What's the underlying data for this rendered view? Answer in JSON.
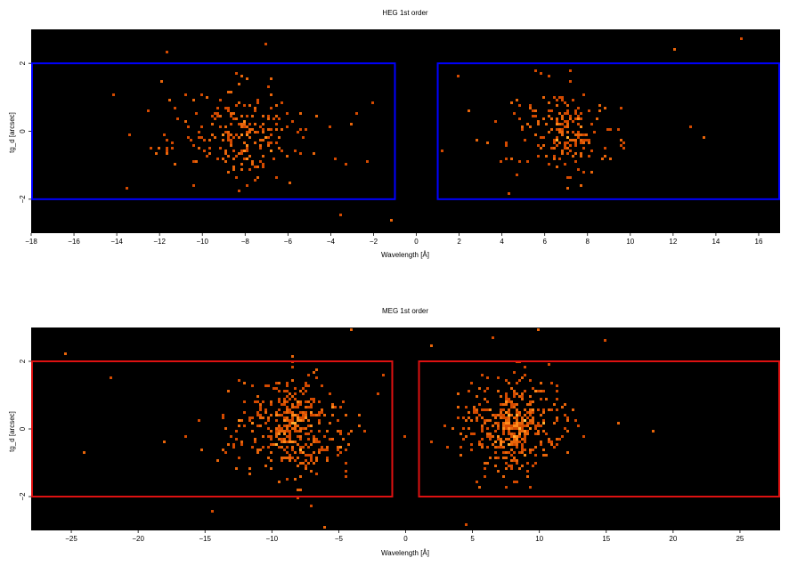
{
  "chart_data": [
    {
      "type": "heatmap",
      "title": "HEG 1st order",
      "xlabel": "Wavelength [Å]",
      "ylabel": "tg_d [arcsec]",
      "xlim": [
        -18,
        17
      ],
      "ylim": [
        -3,
        3
      ],
      "xticks": [
        "−18",
        "−16",
        "−14",
        "−12",
        "−10",
        "−8",
        "−6",
        "−4",
        "−2",
        "0",
        "2",
        "4",
        "6",
        "8",
        "10",
        "12",
        "14",
        "16"
      ],
      "xtick_values": [
        -18,
        -16,
        -14,
        -12,
        -10,
        -8,
        -6,
        -4,
        -2,
        0,
        2,
        4,
        6,
        8,
        10,
        12,
        14,
        16
      ],
      "yticks": [
        "−2",
        "0",
        "2"
      ],
      "ytick_values": [
        -2,
        0,
        2
      ],
      "background_color": "#000000",
      "region_color": "#0000ff",
      "regions": [
        {
          "x0": -18,
          "x1": -1,
          "y0": -2,
          "y1": 2
        },
        {
          "x0": 1,
          "x1": 17,
          "y0": -2,
          "y1": 2
        }
      ],
      "clusters": [
        {
          "center": -8,
          "sigma_x": 2.2,
          "sigma_y": 0.7,
          "count": 230
        },
        {
          "center": 7,
          "sigma_x": 1.8,
          "sigma_y": 0.6,
          "count": 200
        }
      ],
      "extra_points": [
        [
          -12,
          -0.5
        ],
        [
          -14.2,
          1.1
        ],
        [
          -13.5,
          -1.7
        ],
        [
          -11.6,
          2.3
        ],
        [
          -7,
          2.6
        ],
        [
          -2,
          0.8
        ],
        [
          -1.2,
          -2.6
        ],
        [
          -3.5,
          -2.5
        ],
        [
          12.1,
          2.4
        ],
        [
          15.2,
          2.7
        ],
        [
          2,
          1.6
        ],
        [
          4.3,
          -1.8
        ],
        [
          13.4,
          -0.2
        ],
        [
          12.8,
          0.1
        ],
        [
          1.2,
          -0.6
        ]
      ],
      "seed": 11
    },
    {
      "type": "heatmap",
      "title": "MEG 1st order",
      "xlabel": "Wavelength [Å]",
      "ylabel": "tg_d [arcsec]",
      "xlim": [
        -28,
        28
      ],
      "ylim": [
        -3,
        3
      ],
      "xticks": [
        "−25",
        "−20",
        "−15",
        "−10",
        "−5",
        "0",
        "5",
        "10",
        "15",
        "20",
        "25"
      ],
      "xtick_values": [
        -25,
        -20,
        -15,
        -10,
        -5,
        0,
        5,
        10,
        15,
        20,
        25
      ],
      "yticks": [
        "−2",
        "0",
        "2"
      ],
      "ytick_values": [
        -2,
        0,
        2
      ],
      "background_color": "#000000",
      "region_color": "#dd1111",
      "regions": [
        {
          "x0": -28,
          "x1": -1,
          "y0": -2,
          "y1": 2
        },
        {
          "x0": 1,
          "x1": 28,
          "y0": -2,
          "y1": 2
        }
      ],
      "clusters": [
        {
          "center": -8.5,
          "sigma_x": 2.6,
          "sigma_y": 0.75,
          "count": 400
        },
        {
          "center": 8,
          "sigma_x": 2.2,
          "sigma_y": 0.7,
          "count": 430
        }
      ],
      "extra_points": [
        [
          -25.5,
          2.2
        ],
        [
          -24,
          -0.7
        ],
        [
          -22,
          1.5
        ],
        [
          -18,
          -0.4
        ],
        [
          -14.5,
          -2.4
        ],
        [
          -4,
          2.9
        ],
        [
          2,
          2.5
        ],
        [
          6.5,
          2.7
        ],
        [
          10,
          2.9
        ],
        [
          15,
          2.6
        ],
        [
          18.5,
          -0.1
        ],
        [
          16,
          0.2
        ],
        [
          -6,
          -2.9
        ],
        [
          4.5,
          -2.8
        ]
      ],
      "seed": 29
    }
  ]
}
